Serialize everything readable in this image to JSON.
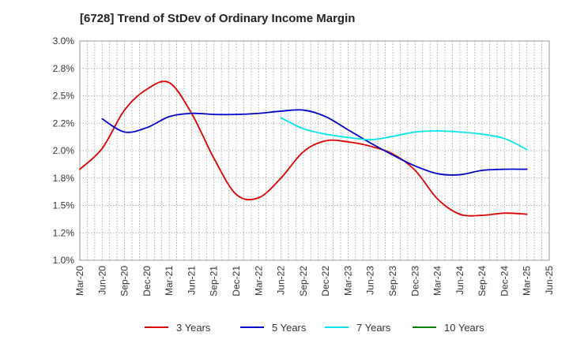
{
  "chart_data": {
    "type": "line",
    "title": "[6728]  Trend of StDev of Ordinary Income Margin",
    "xlabel": "",
    "ylabel": "",
    "x_ticks": [
      "Mar-20",
      "Jun-20",
      "Sep-20",
      "Dec-20",
      "Mar-21",
      "Jun-21",
      "Sep-21",
      "Dec-21",
      "Mar-22",
      "Jun-22",
      "Sep-22",
      "Dec-22",
      "Mar-23",
      "Jun-23",
      "Sep-23",
      "Dec-23",
      "Mar-24",
      "Jun-24",
      "Sep-24",
      "Dec-24",
      "Mar-25",
      "Jun-25"
    ],
    "y_ticks": [
      1.0,
      1.25,
      1.5,
      1.75,
      2.0,
      2.25,
      2.5,
      2.75,
      3.0
    ],
    "y_tick_labels": [
      "1.0%",
      "1.2%",
      "1.5%",
      "1.8%",
      "2.0%",
      "2.2%",
      "2.5%",
      "2.8%",
      "3.0%"
    ],
    "ylim": [
      1.0,
      3.0
    ],
    "grid": true,
    "legend_position": "bottom",
    "series": [
      {
        "name": "3 Years",
        "color": "#dd0000",
        "x": [
          "Mar-20",
          "Jun-20",
          "Sep-20",
          "Dec-20",
          "Mar-21",
          "Jun-21",
          "Sep-21",
          "Dec-21",
          "Mar-22",
          "Jun-22",
          "Sep-22",
          "Dec-22",
          "Mar-23",
          "Jun-23",
          "Sep-23",
          "Dec-23",
          "Mar-24",
          "Jun-24",
          "Sep-24",
          "Dec-24",
          "Mar-25"
        ],
        "values": [
          1.83,
          2.02,
          2.37,
          2.56,
          2.62,
          2.34,
          1.93,
          1.6,
          1.57,
          1.75,
          1.99,
          2.09,
          2.08,
          2.04,
          1.97,
          1.82,
          1.56,
          1.42,
          1.41,
          1.43,
          1.42
        ]
      },
      {
        "name": "5 Years",
        "color": "#0000cc",
        "x": [
          "Jun-20",
          "Sep-20",
          "Dec-20",
          "Mar-21",
          "Jun-21",
          "Sep-21",
          "Dec-21",
          "Mar-22",
          "Jun-22",
          "Sep-22",
          "Dec-22",
          "Mar-23",
          "Jun-23",
          "Sep-23",
          "Dec-23",
          "Mar-24",
          "Jun-24",
          "Sep-24",
          "Dec-24",
          "Mar-25"
        ],
        "values": [
          2.29,
          2.17,
          2.21,
          2.31,
          2.34,
          2.33,
          2.33,
          2.34,
          2.36,
          2.37,
          2.31,
          2.19,
          2.07,
          1.96,
          1.86,
          1.79,
          1.78,
          1.82,
          1.83,
          1.83
        ]
      },
      {
        "name": "7 Years",
        "color": "#00e5ee",
        "x": [
          "Jun-22",
          "Sep-22",
          "Dec-22",
          "Mar-23",
          "Jun-23",
          "Sep-23",
          "Dec-23",
          "Mar-24",
          "Jun-24",
          "Sep-24",
          "Dec-24",
          "Mar-25"
        ],
        "values": [
          2.3,
          2.2,
          2.15,
          2.12,
          2.1,
          2.13,
          2.17,
          2.18,
          2.17,
          2.15,
          2.11,
          2.01
        ]
      },
      {
        "name": "10 Years",
        "color": "#008000",
        "x": [],
        "values": []
      }
    ]
  }
}
